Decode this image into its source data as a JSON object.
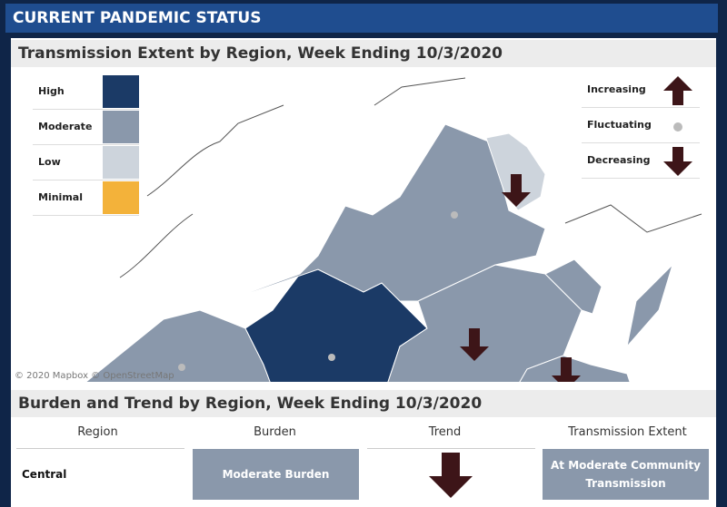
{
  "header": {
    "title": "CURRENT PANDEMIC STATUS"
  },
  "map": {
    "title": "Transmission Extent by Region, Week Ending 10/3/2020",
    "extent_legend": [
      {
        "label": "High",
        "color": "#1b3a66"
      },
      {
        "label": "Moderate",
        "color": "#8a98ab"
      },
      {
        "label": "Low",
        "color": "#cdd4dc"
      },
      {
        "label": "Minimal",
        "color": "#f3b23a"
      }
    ],
    "trend_legend": [
      "Increasing",
      "Fluctuating",
      "Decreasing"
    ],
    "attribution": "© 2020 Mapbox © OpenStreetMap"
  },
  "table": {
    "title": "Burden and Trend by Region, Week Ending 10/3/2020",
    "columns": [
      "Region",
      "Burden",
      "Trend",
      "Transmission Extent"
    ],
    "rows": [
      {
        "region": "Central",
        "burden": "Moderate Burden",
        "extent": "At Moderate Community Transmission"
      }
    ]
  }
}
